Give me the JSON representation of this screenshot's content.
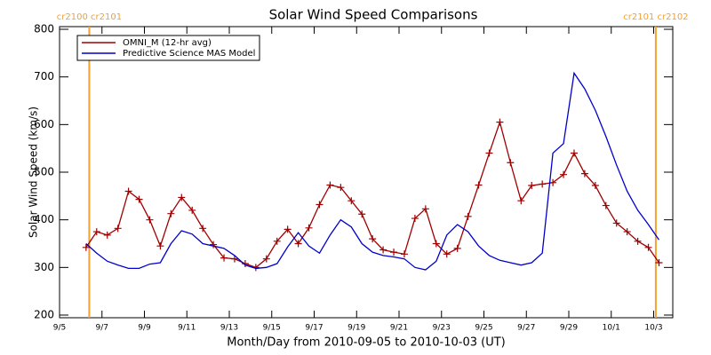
{
  "chart_data": {
    "type": "line",
    "title": "Solar Wind Speed Comparisons",
    "x_label": "Month/Day from 2010-09-05 to 2010-10-03 (UT)",
    "y_label": "Solar Wind Speed (km/s)",
    "xlim": [
      0,
      28.9
    ],
    "xticks": [
      {
        "value": 0,
        "label": "9/5"
      },
      {
        "value": 2,
        "label": "9/7"
      },
      {
        "value": 4,
        "label": "9/9"
      },
      {
        "value": 6,
        "label": "9/11"
      },
      {
        "value": 8,
        "label": "9/13"
      },
      {
        "value": 10,
        "label": "9/15"
      },
      {
        "value": 12,
        "label": "9/17"
      },
      {
        "value": 14,
        "label": "9/19"
      },
      {
        "value": 16,
        "label": "9/21"
      },
      {
        "value": 18,
        "label": "9/23"
      },
      {
        "value": 20,
        "label": "9/25"
      },
      {
        "value": 22,
        "label": "9/27"
      },
      {
        "value": 24,
        "label": "9/29"
      },
      {
        "value": 26,
        "label": "10/1"
      },
      {
        "value": 28,
        "label": "10/3"
      }
    ],
    "ylim": [
      200,
      800
    ],
    "yticks": [
      200,
      300,
      400,
      500,
      600,
      700,
      800
    ],
    "legend": "top-left",
    "x": [
      1.25,
      1.75,
      2.25,
      2.75,
      3.25,
      3.75,
      4.25,
      4.75,
      5.25,
      5.75,
      6.25,
      6.75,
      7.25,
      7.75,
      8.25,
      8.75,
      9.25,
      9.75,
      10.25,
      10.75,
      11.25,
      11.75,
      12.25,
      12.75,
      13.25,
      13.75,
      14.25,
      14.75,
      15.25,
      15.75,
      16.25,
      16.75,
      17.25,
      17.75,
      18.25,
      18.75,
      19.25,
      19.75,
      20.25,
      20.75,
      21.25,
      21.75,
      22.25,
      22.75,
      23.25,
      23.75,
      24.25,
      24.75,
      25.25,
      25.75,
      26.25,
      26.75,
      27.25,
      27.75,
      28.25
    ],
    "series": [
      {
        "name": "OMNI_M (12-hr avg)",
        "color": "#a00000",
        "marker": "+",
        "values": [
          342,
          375,
          368,
          382,
          460,
          443,
          400,
          345,
          413,
          447,
          420,
          382,
          348,
          320,
          318,
          308,
          300,
          318,
          355,
          380,
          350,
          383,
          432,
          473,
          468,
          440,
          412,
          360,
          337,
          332,
          328,
          403,
          423,
          350,
          328,
          340,
          407,
          473,
          540,
          605,
          520,
          440,
          472,
          475,
          478,
          495,
          540,
          497,
          472,
          430,
          393,
          375,
          355,
          342,
          310
        ]
      },
      {
        "name": "Predictive Science MAS Model",
        "color": "#0000cc",
        "values": [
          350,
          330,
          313,
          305,
          298,
          298,
          307,
          310,
          350,
          377,
          370,
          350,
          345,
          340,
          325,
          305,
          298,
          300,
          308,
          343,
          373,
          345,
          330,
          368,
          400,
          385,
          350,
          332,
          325,
          322,
          318,
          300,
          295,
          313,
          368,
          390,
          375,
          345,
          325,
          315,
          310,
          305,
          310,
          330,
          540,
          560,
          708,
          675,
          630,
          575,
          515,
          460,
          420,
          390,
          358
        ]
      }
    ],
    "markers": [
      {
        "x": 1.4,
        "label": "cr2100 cr2101"
      },
      {
        "x": 28.1,
        "label": "cr2101 cr2102"
      }
    ],
    "marker_color": "#f5a030"
  }
}
